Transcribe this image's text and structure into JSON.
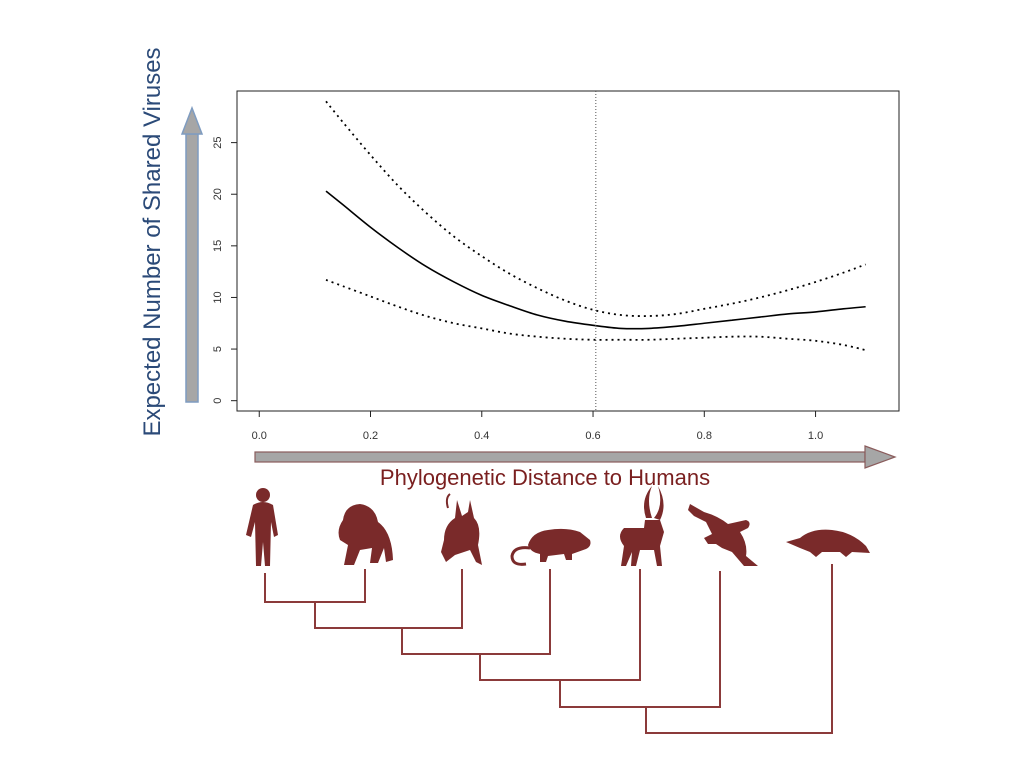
{
  "chart_data": {
    "type": "line",
    "title": "",
    "xlabel": "Phylogenetic Distance to Humans",
    "ylabel": "Expected Number of Shared Viruses",
    "xlim": [
      -0.04,
      1.15
    ],
    "ylim": [
      -1,
      30
    ],
    "x_ticks": [
      "0.0",
      "0.2",
      "0.4",
      "0.6",
      "0.8",
      "1.0"
    ],
    "y_ticks": [
      "0",
      "5",
      "10",
      "15",
      "20",
      "25"
    ],
    "reference_line_x": 0.605,
    "grid": false,
    "x": [
      0.12,
      0.15,
      0.2,
      0.25,
      0.3,
      0.35,
      0.4,
      0.45,
      0.5,
      0.55,
      0.6,
      0.65,
      0.7,
      0.75,
      0.8,
      0.85,
      0.9,
      0.95,
      1.0,
      1.05,
      1.09
    ],
    "series": [
      {
        "style": "solid",
        "values": [
          20.3,
          19.0,
          16.8,
          14.8,
          13.0,
          11.5,
          10.2,
          9.2,
          8.3,
          7.7,
          7.3,
          7.0,
          7.0,
          7.2,
          7.5,
          7.8,
          8.1,
          8.4,
          8.6,
          8.9,
          9.1
        ]
      },
      {
        "style": "dotted",
        "values": [
          29.0,
          27.0,
          23.8,
          20.8,
          18.2,
          15.9,
          14.0,
          12.3,
          10.9,
          9.7,
          8.8,
          8.3,
          8.2,
          8.4,
          8.9,
          9.4,
          10.0,
          10.7,
          11.5,
          12.4,
          13.2
        ]
      },
      {
        "style": "dotted",
        "values": [
          11.7,
          11.1,
          10.1,
          9.1,
          8.2,
          7.5,
          7.0,
          6.5,
          6.2,
          6.0,
          5.9,
          5.9,
          5.9,
          6.0,
          6.1,
          6.2,
          6.2,
          6.0,
          5.8,
          5.4,
          4.9
        ]
      }
    ]
  },
  "colors": {
    "curve": "#000000",
    "y_arrow": "#a6a6a6",
    "y_arrow_edge": "#7f9cc0",
    "x_arrow": "#a6a6a6",
    "x_arrow_edge": "#8a5c5c",
    "ylabel": "#2b4a78",
    "xlabel": "#7a1f1f",
    "silhouette": "#7a2a2a",
    "tree": "#8b3a3a"
  },
  "silhouettes": [
    "human-icon",
    "gorilla-icon",
    "bat-icon",
    "rodent-icon",
    "antelope-icon",
    "kangaroo-icon",
    "platypus-icon"
  ]
}
